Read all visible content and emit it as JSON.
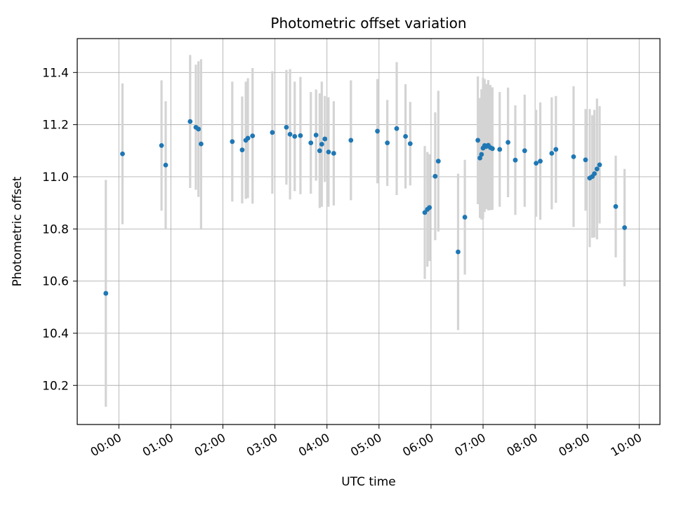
{
  "figure": {
    "background": "#ffffff"
  },
  "chart_data": {
    "type": "scatter",
    "title": "Photometric offset variation",
    "xlabel": "UTC time",
    "ylabel": "Photometric offset",
    "grid": true,
    "legend": "none",
    "marker_color": "#1f77b4",
    "errorbar_color": "#d4d4d4",
    "grid_color": "#b0b0b0",
    "axes_edge_color": "#000000",
    "x_tick_hours": [
      0,
      1,
      2,
      3,
      4,
      5,
      6,
      7,
      8,
      9,
      10
    ],
    "x_tick_labels": [
      "00:00",
      "01:00",
      "02:00",
      "03:00",
      "04:00",
      "05:00",
      "06:00",
      "07:00",
      "08:00",
      "09:00",
      "10:00"
    ],
    "y_ticks": [
      10.2,
      10.4,
      10.6,
      10.8,
      11.0,
      11.2,
      11.4
    ],
    "xlim_hours": [
      -0.8,
      10.4
    ],
    "ylim": [
      10.05,
      11.53
    ],
    "points_format": [
      "utc_hours",
      "photometric_offset",
      "error_halfwidth"
    ],
    "points": [
      [
        -0.25,
        10.553,
        0.435
      ],
      [
        0.07,
        11.088,
        0.27
      ],
      [
        0.82,
        11.12,
        0.25
      ],
      [
        0.9,
        11.045,
        0.245
      ],
      [
        1.37,
        11.212,
        0.255
      ],
      [
        1.48,
        11.19,
        0.24
      ],
      [
        1.53,
        11.183,
        0.26
      ],
      [
        1.58,
        11.126,
        0.325
      ],
      [
        2.18,
        11.135,
        0.23
      ],
      [
        2.37,
        11.103,
        0.205
      ],
      [
        2.44,
        11.14,
        0.225
      ],
      [
        2.48,
        11.148,
        0.23
      ],
      [
        2.57,
        11.157,
        0.26
      ],
      [
        2.95,
        11.17,
        0.235
      ],
      [
        3.22,
        11.19,
        0.22
      ],
      [
        3.29,
        11.163,
        0.25
      ],
      [
        3.38,
        11.155,
        0.21
      ],
      [
        3.49,
        11.158,
        0.225
      ],
      [
        3.69,
        11.13,
        0.195
      ],
      [
        3.79,
        11.16,
        0.175
      ],
      [
        3.86,
        11.1,
        0.22
      ],
      [
        3.9,
        11.125,
        0.24
      ],
      [
        3.96,
        11.145,
        0.165
      ],
      [
        4.03,
        11.095,
        0.21
      ],
      [
        4.13,
        11.09,
        0.2
      ],
      [
        4.46,
        11.14,
        0.23
      ],
      [
        4.97,
        11.175,
        0.2
      ],
      [
        5.16,
        11.13,
        0.165
      ],
      [
        5.34,
        11.185,
        0.255
      ],
      [
        5.51,
        11.155,
        0.2
      ],
      [
        5.6,
        11.127,
        0.16
      ],
      [
        5.88,
        10.863,
        0.255
      ],
      [
        5.93,
        10.875,
        0.22
      ],
      [
        5.97,
        10.882,
        0.205
      ],
      [
        6.08,
        11.002,
        0.245
      ],
      [
        6.14,
        11.06,
        0.27
      ],
      [
        6.52,
        10.712,
        0.3
      ],
      [
        6.65,
        10.845,
        0.22
      ],
      [
        6.9,
        11.14,
        0.245
      ],
      [
        6.94,
        11.072,
        0.23
      ],
      [
        6.97,
        11.086,
        0.25
      ],
      [
        7.0,
        11.11,
        0.27
      ],
      [
        7.03,
        11.12,
        0.255
      ],
      [
        7.06,
        11.116,
        0.24
      ],
      [
        7.1,
        11.121,
        0.25
      ],
      [
        7.14,
        11.112,
        0.24
      ],
      [
        7.18,
        11.108,
        0.235
      ],
      [
        7.32,
        11.105,
        0.22
      ],
      [
        7.48,
        11.132,
        0.21
      ],
      [
        7.62,
        11.064,
        0.21
      ],
      [
        7.8,
        11.1,
        0.215
      ],
      [
        8.02,
        11.052,
        0.205
      ],
      [
        8.1,
        11.06,
        0.225
      ],
      [
        8.32,
        11.09,
        0.215
      ],
      [
        8.4,
        11.105,
        0.205
      ],
      [
        8.74,
        11.077,
        0.27
      ],
      [
        8.97,
        11.065,
        0.195
      ],
      [
        9.05,
        10.995,
        0.265
      ],
      [
        9.1,
        11.001,
        0.235
      ],
      [
        9.14,
        11.012,
        0.245
      ],
      [
        9.19,
        11.03,
        0.27
      ],
      [
        9.24,
        11.046,
        0.225
      ],
      [
        9.55,
        10.886,
        0.195
      ],
      [
        9.72,
        10.805,
        0.225
      ]
    ]
  }
}
